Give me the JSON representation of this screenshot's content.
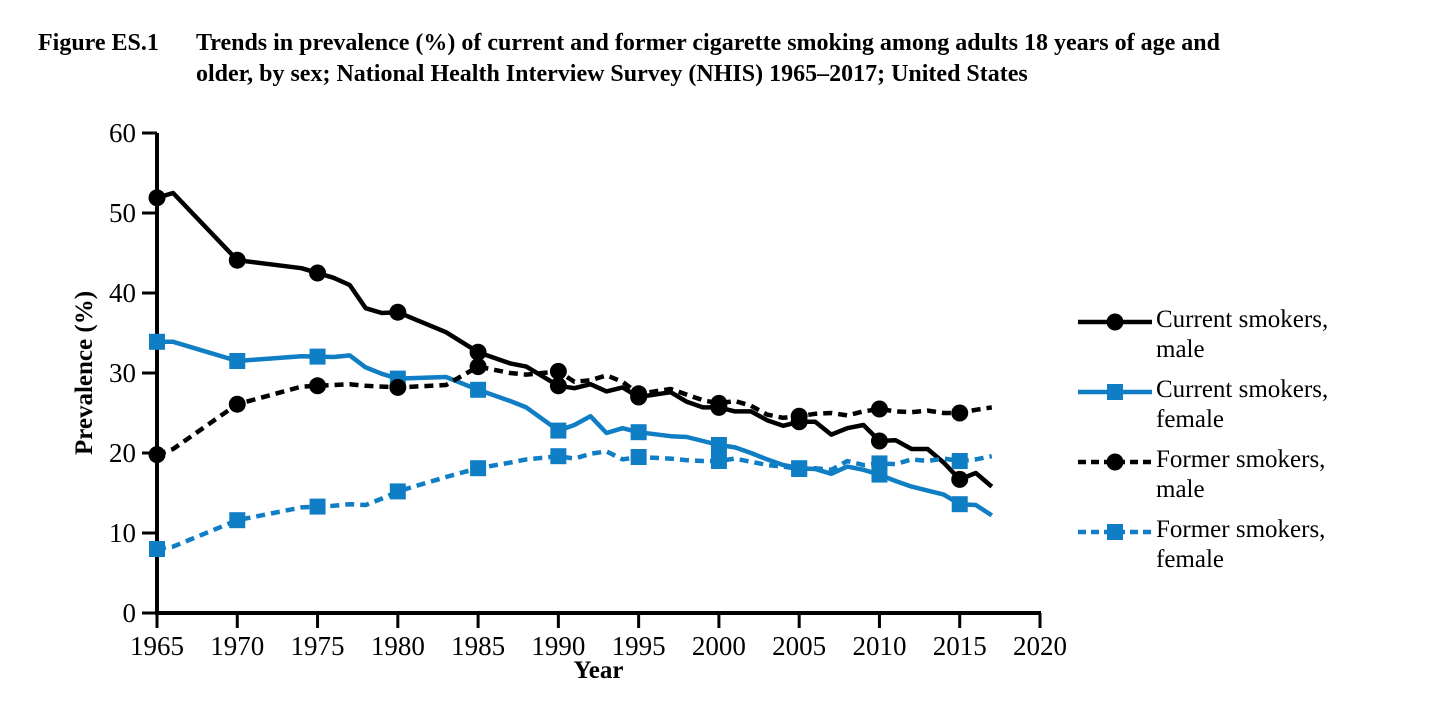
{
  "header": {
    "figure_label": "Figure ES.1",
    "title_line1": "Trends in prevalence (%) of current and former cigarette smoking among adults 18 years of age and",
    "title_line2": "older, by sex; National Health Interview Survey (NHIS) 1965–2017; United States"
  },
  "colors": {
    "black": "#000000",
    "accent_blue": "#107ec4"
  },
  "legend": {
    "position": "right",
    "items": [
      {
        "key": "current-male",
        "lines": [
          "Current smokers,",
          "male"
        ]
      },
      {
        "key": "current-female",
        "lines": [
          "Current smokers,",
          "female"
        ]
      },
      {
        "key": "former-male",
        "lines": [
          "Former smokers,",
          "male"
        ]
      },
      {
        "key": "former-female",
        "lines": [
          "Former smokers,",
          "female"
        ]
      }
    ]
  },
  "chart_data": {
    "type": "line",
    "title": "Trends in prevalence (%) of current and former cigarette smoking among adults 18 years of age and older, by sex; National Health Interview Survey (NHIS) 1965–2017; United States",
    "xlabel": "Year",
    "ylabel": "Prevalence (%)",
    "xlim": [
      1965,
      2020
    ],
    "ylim": [
      0,
      60
    ],
    "xticks": [
      1965,
      1970,
      1975,
      1980,
      1985,
      1990,
      1995,
      2000,
      2005,
      2010,
      2015,
      2020
    ],
    "yticks": [
      0,
      10,
      20,
      30,
      40,
      50,
      60
    ],
    "grid": false,
    "legend_position": "right",
    "marker_years": [
      1965,
      1970,
      1975,
      1980,
      1985,
      1990,
      1995,
      2000,
      2005,
      2010,
      2015
    ],
    "series": [
      {
        "name": "Current smokers, male",
        "color": "#000000",
        "line": "solid",
        "marker": "circle",
        "points": [
          [
            1965,
            51.9
          ],
          [
            1966,
            52.5
          ],
          [
            1970,
            44.1
          ],
          [
            1974,
            43.1
          ],
          [
            1976,
            41.9
          ],
          [
            1977,
            41.0
          ],
          [
            1978,
            38.1
          ],
          [
            1979,
            37.5
          ],
          [
            1980,
            37.6
          ],
          [
            1983,
            35.1
          ],
          [
            1985,
            32.6
          ],
          [
            1987,
            31.2
          ],
          [
            1988,
            30.8
          ],
          [
            1990,
            28.4
          ],
          [
            1991,
            28.1
          ],
          [
            1992,
            28.6
          ],
          [
            1993,
            27.7
          ],
          [
            1994,
            28.2
          ],
          [
            1995,
            27.0
          ],
          [
            1997,
            27.6
          ],
          [
            1998,
            26.4
          ],
          [
            1999,
            25.7
          ],
          [
            2000,
            25.7
          ],
          [
            2001,
            25.2
          ],
          [
            2002,
            25.2
          ],
          [
            2003,
            24.1
          ],
          [
            2004,
            23.4
          ],
          [
            2005,
            23.9
          ],
          [
            2006,
            23.9
          ],
          [
            2007,
            22.3
          ],
          [
            2008,
            23.1
          ],
          [
            2009,
            23.5
          ],
          [
            2010,
            21.5
          ],
          [
            2011,
            21.6
          ],
          [
            2012,
            20.5
          ],
          [
            2013,
            20.5
          ],
          [
            2014,
            18.8
          ],
          [
            2015,
            16.7
          ],
          [
            2016,
            17.5
          ],
          [
            2017,
            15.8
          ]
        ]
      },
      {
        "name": "Current smokers, female",
        "color": "#107ec4",
        "line": "solid",
        "marker": "square",
        "points": [
          [
            1965,
            33.9
          ],
          [
            1966,
            33.9
          ],
          [
            1970,
            31.5
          ],
          [
            1974,
            32.1
          ],
          [
            1976,
            32.0
          ],
          [
            1977,
            32.2
          ],
          [
            1978,
            30.7
          ],
          [
            1979,
            29.9
          ],
          [
            1980,
            29.3
          ],
          [
            1983,
            29.5
          ],
          [
            1985,
            27.9
          ],
          [
            1987,
            26.5
          ],
          [
            1988,
            25.7
          ],
          [
            1990,
            22.8
          ],
          [
            1991,
            23.5
          ],
          [
            1992,
            24.6
          ],
          [
            1993,
            22.5
          ],
          [
            1994,
            23.1
          ],
          [
            1995,
            22.6
          ],
          [
            1997,
            22.1
          ],
          [
            1998,
            22.0
          ],
          [
            1999,
            21.5
          ],
          [
            2000,
            21.0
          ],
          [
            2001,
            20.7
          ],
          [
            2002,
            20.0
          ],
          [
            2003,
            19.2
          ],
          [
            2004,
            18.5
          ],
          [
            2005,
            18.1
          ],
          [
            2006,
            18.0
          ],
          [
            2007,
            17.4
          ],
          [
            2008,
            18.3
          ],
          [
            2009,
            17.9
          ],
          [
            2010,
            17.3
          ],
          [
            2011,
            16.5
          ],
          [
            2012,
            15.8
          ],
          [
            2013,
            15.3
          ],
          [
            2014,
            14.8
          ],
          [
            2015,
            13.6
          ],
          [
            2016,
            13.5
          ],
          [
            2017,
            12.2
          ]
        ]
      },
      {
        "name": "Former smokers, male",
        "color": "#000000",
        "line": "dashed",
        "marker": "circle",
        "points": [
          [
            1965,
            19.8
          ],
          [
            1966,
            20.5
          ],
          [
            1970,
            26.1
          ],
          [
            1974,
            28.3
          ],
          [
            1976,
            28.5
          ],
          [
            1977,
            28.6
          ],
          [
            1978,
            28.4
          ],
          [
            1979,
            28.3
          ],
          [
            1980,
            28.2
          ],
          [
            1983,
            28.5
          ],
          [
            1985,
            30.8
          ],
          [
            1987,
            30.0
          ],
          [
            1988,
            29.8
          ],
          [
            1990,
            30.2
          ],
          [
            1991,
            28.9
          ],
          [
            1992,
            29.1
          ],
          [
            1993,
            29.7
          ],
          [
            1994,
            28.9
          ],
          [
            1995,
            27.4
          ],
          [
            1997,
            28.0
          ],
          [
            1998,
            27.3
          ],
          [
            1999,
            26.6
          ],
          [
            2000,
            26.2
          ],
          [
            2001,
            26.5
          ],
          [
            2002,
            25.9
          ],
          [
            2003,
            24.8
          ],
          [
            2004,
            24.4
          ],
          [
            2005,
            24.6
          ],
          [
            2006,
            24.9
          ],
          [
            2007,
            25.0
          ],
          [
            2008,
            24.7
          ],
          [
            2009,
            25.2
          ],
          [
            2010,
            25.5
          ],
          [
            2011,
            25.2
          ],
          [
            2012,
            25.1
          ],
          [
            2013,
            25.3
          ],
          [
            2014,
            25.0
          ],
          [
            2015,
            25.0
          ],
          [
            2016,
            25.4
          ],
          [
            2017,
            25.7
          ]
        ]
      },
      {
        "name": "Former smokers, female",
        "color": "#107ec4",
        "line": "dashed",
        "marker": "square",
        "points": [
          [
            1965,
            8.0
          ],
          [
            1966,
            8.3
          ],
          [
            1970,
            11.6
          ],
          [
            1974,
            13.2
          ],
          [
            1976,
            13.4
          ],
          [
            1977,
            13.6
          ],
          [
            1978,
            13.5
          ],
          [
            1979,
            14.3
          ],
          [
            1980,
            15.2
          ],
          [
            1983,
            17.0
          ],
          [
            1985,
            18.1
          ],
          [
            1987,
            18.8
          ],
          [
            1988,
            19.2
          ],
          [
            1990,
            19.6
          ],
          [
            1991,
            19.3
          ],
          [
            1992,
            19.9
          ],
          [
            1993,
            20.2
          ],
          [
            1994,
            19.2
          ],
          [
            1995,
            19.5
          ],
          [
            1997,
            19.3
          ],
          [
            1998,
            19.1
          ],
          [
            1999,
            19.0
          ],
          [
            2000,
            19.0
          ],
          [
            2001,
            19.3
          ],
          [
            2002,
            18.9
          ],
          [
            2003,
            18.5
          ],
          [
            2004,
            18.3
          ],
          [
            2005,
            18.0
          ],
          [
            2006,
            18.1
          ],
          [
            2007,
            17.9
          ],
          [
            2008,
            19.0
          ],
          [
            2009,
            18.5
          ],
          [
            2010,
            18.7
          ],
          [
            2011,
            18.6
          ],
          [
            2012,
            19.2
          ],
          [
            2013,
            19.0
          ],
          [
            2014,
            19.3
          ],
          [
            2015,
            19.0
          ],
          [
            2016,
            19.2
          ],
          [
            2017,
            19.6
          ]
        ]
      }
    ]
  }
}
